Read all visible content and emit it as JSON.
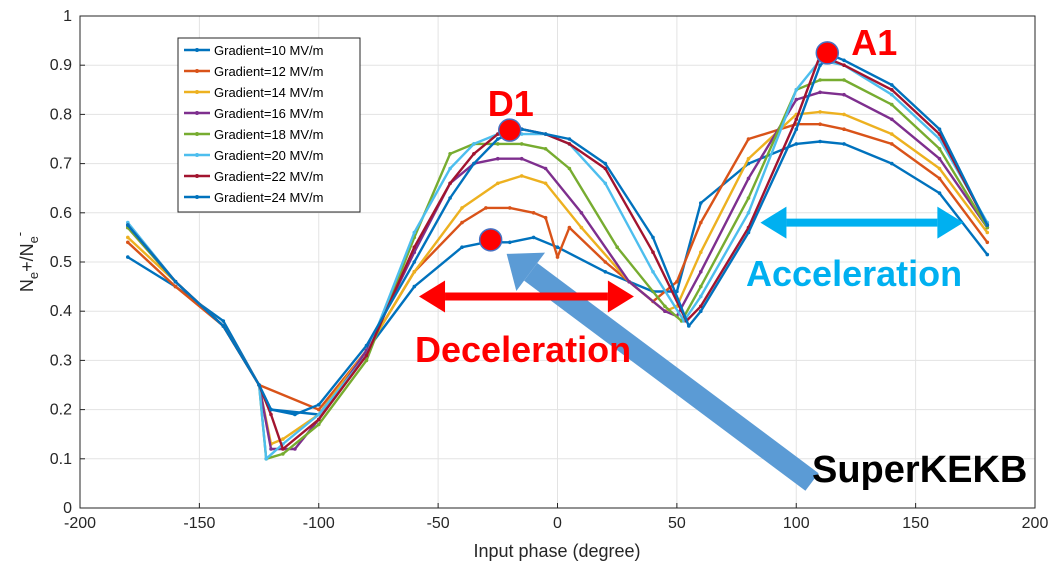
{
  "chart_data": {
    "type": "line",
    "xlabel": "Input phase (degree)",
    "ylabel": "N",
    "ylabel_parts": [
      "N",
      "e",
      "+/N",
      "e",
      "-"
    ],
    "xlim": [
      -200,
      200
    ],
    "ylim": [
      0,
      1
    ],
    "x_ticks": [
      "-200",
      "-150",
      "-100",
      "-50",
      "0",
      "50",
      "100",
      "150",
      "200"
    ],
    "y_ticks": [
      "0",
      "0.1",
      "0.2",
      "0.3",
      "0.4",
      "0.5",
      "0.6",
      "0.7",
      "0.8",
      "0.9",
      "1"
    ],
    "grid": true,
    "legend_position": "top-left",
    "series": [
      {
        "name": "Gradient=10 MV/m",
        "color": "#0072bd",
        "x": [
          -180,
          -160,
          -140,
          -125,
          -120,
          -100,
          -80,
          -60,
          -40,
          -30,
          -20,
          -10,
          0,
          20,
          40,
          50,
          60,
          80,
          100,
          110,
          120,
          140,
          160,
          180
        ],
        "y": [
          0.51,
          0.45,
          0.38,
          0.25,
          0.2,
          0.19,
          0.32,
          0.45,
          0.53,
          0.54,
          0.54,
          0.55,
          0.53,
          0.48,
          0.44,
          0.44,
          0.62,
          0.7,
          0.74,
          0.745,
          0.74,
          0.7,
          0.64,
          0.515
        ]
      },
      {
        "name": "Gradient=12 MV/m",
        "color": "#d95319",
        "x": [
          -180,
          -160,
          -140,
          -125,
          -100,
          -80,
          -60,
          -40,
          -30,
          -20,
          -10,
          -5,
          0,
          5,
          20,
          40,
          50,
          60,
          80,
          100,
          110,
          120,
          140,
          160,
          180
        ],
        "y": [
          0.54,
          0.45,
          0.37,
          0.25,
          0.2,
          0.32,
          0.48,
          0.58,
          0.61,
          0.61,
          0.6,
          0.59,
          0.51,
          0.57,
          0.5,
          0.42,
          0.46,
          0.58,
          0.75,
          0.78,
          0.78,
          0.77,
          0.74,
          0.67,
          0.54
        ]
      },
      {
        "name": "Gradient=14 MV/m",
        "color": "#edb120",
        "x": [
          -180,
          -160,
          -140,
          -125,
          -120,
          -115,
          -100,
          -80,
          -60,
          -40,
          -25,
          -15,
          -5,
          10,
          30,
          45,
          50,
          60,
          80,
          100,
          110,
          120,
          140,
          160,
          180
        ],
        "y": [
          0.55,
          0.46,
          0.37,
          0.25,
          0.13,
          0.14,
          0.19,
          0.32,
          0.48,
          0.61,
          0.66,
          0.675,
          0.66,
          0.57,
          0.46,
          0.4,
          0.41,
          0.52,
          0.71,
          0.8,
          0.805,
          0.8,
          0.76,
          0.69,
          0.56
        ]
      },
      {
        "name": "Gradient=16 MV/m",
        "color": "#7e2f8e",
        "x": [
          -180,
          -160,
          -140,
          -125,
          -120,
          -110,
          -100,
          -80,
          -60,
          -45,
          -35,
          -25,
          -15,
          -5,
          10,
          30,
          45,
          50,
          60,
          80,
          100,
          110,
          120,
          140,
          160,
          180
        ],
        "y": [
          0.57,
          0.46,
          0.37,
          0.25,
          0.12,
          0.12,
          0.18,
          0.32,
          0.52,
          0.66,
          0.7,
          0.71,
          0.71,
          0.69,
          0.6,
          0.46,
          0.4,
          0.39,
          0.48,
          0.67,
          0.83,
          0.845,
          0.84,
          0.79,
          0.71,
          0.57
        ]
      },
      {
        "name": "Gradient=18 MV/m",
        "color": "#77ac30",
        "x": [
          -180,
          -160,
          -140,
          -125,
          -122,
          -115,
          -100,
          -80,
          -60,
          -45,
          -35,
          -25,
          -15,
          -5,
          5,
          25,
          45,
          52,
          60,
          80,
          100,
          110,
          120,
          140,
          160,
          180
        ],
        "y": [
          0.57,
          0.46,
          0.37,
          0.25,
          0.1,
          0.11,
          0.17,
          0.3,
          0.55,
          0.72,
          0.74,
          0.74,
          0.74,
          0.73,
          0.69,
          0.53,
          0.41,
          0.38,
          0.45,
          0.63,
          0.85,
          0.87,
          0.87,
          0.82,
          0.73,
          0.57
        ]
      },
      {
        "name": "Gradient=20 MV/m",
        "color": "#4dbeee",
        "x": [
          -180,
          -160,
          -140,
          -125,
          -122,
          -115,
          -100,
          -80,
          -60,
          -45,
          -35,
          -25,
          -15,
          -5,
          5,
          20,
          40,
          53,
          60,
          80,
          100,
          110,
          120,
          140,
          160,
          180
        ],
        "y": [
          0.58,
          0.46,
          0.37,
          0.25,
          0.1,
          0.13,
          0.19,
          0.31,
          0.56,
          0.69,
          0.74,
          0.76,
          0.76,
          0.76,
          0.74,
          0.66,
          0.48,
          0.38,
          0.43,
          0.6,
          0.85,
          0.91,
          0.9,
          0.84,
          0.75,
          0.58
        ]
      },
      {
        "name": "Gradient=22 MV/m",
        "color": "#a2142f",
        "x": [
          -180,
          -160,
          -140,
          -125,
          -120,
          -115,
          -100,
          -80,
          -60,
          -45,
          -35,
          -25,
          -15,
          -5,
          5,
          20,
          40,
          54,
          60,
          80,
          100,
          110,
          120,
          140,
          160,
          180
        ],
        "y": [
          0.575,
          0.46,
          0.37,
          0.25,
          0.19,
          0.12,
          0.18,
          0.31,
          0.53,
          0.66,
          0.72,
          0.76,
          0.77,
          0.76,
          0.74,
          0.69,
          0.52,
          0.38,
          0.41,
          0.57,
          0.79,
          0.92,
          0.9,
          0.85,
          0.76,
          0.575
        ]
      },
      {
        "name": "Gradient=24 MV/m",
        "color": "#0072bd",
        "x": [
          -180,
          -160,
          -140,
          -125,
          -120,
          -110,
          -100,
          -80,
          -60,
          -45,
          -35,
          -25,
          -15,
          -5,
          5,
          20,
          40,
          55,
          60,
          80,
          100,
          110,
          115,
          120,
          140,
          160,
          180
        ],
        "y": [
          0.575,
          0.46,
          0.37,
          0.25,
          0.2,
          0.19,
          0.21,
          0.33,
          0.5,
          0.63,
          0.7,
          0.75,
          0.77,
          0.76,
          0.75,
          0.7,
          0.55,
          0.37,
          0.4,
          0.56,
          0.77,
          0.9,
          0.92,
          0.91,
          0.86,
          0.77,
          0.575
        ]
      }
    ],
    "annotations": {
      "points": [
        {
          "label": "D1",
          "x": -20,
          "y": 0.768
        },
        {
          "label": "A1",
          "x": 113,
          "y": 0.925
        },
        {
          "label": "",
          "x": -28,
          "y": 0.545
        }
      ],
      "deceleration_label": "Deceleration",
      "acceleration_label": "Acceleration",
      "superkekb_label": "SuperKEKB",
      "deceleration_range": [
        -58,
        32
      ],
      "acceleration_range": [
        85,
        170
      ],
      "arrow_level_decel": 0.43,
      "arrow_level_accel": 0.58
    },
    "colors": {
      "marker": "#ff0000",
      "deceleration": "#ff0000",
      "acceleration": "#00b0f0",
      "superkekb_arrow": "#5b9bd5"
    }
  }
}
